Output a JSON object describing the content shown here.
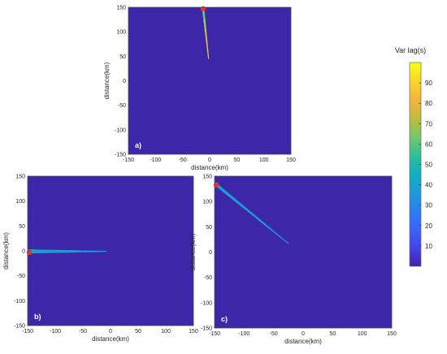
{
  "chart_data": [
    {
      "panel": "a)",
      "type": "heatmap",
      "xlabel": "distance(km)",
      "ylabel": "distance(km)",
      "xlim": [
        -150,
        150
      ],
      "ylim": [
        -150,
        150
      ],
      "xticks": [
        -150,
        -100,
        -50,
        0,
        50,
        100,
        150
      ],
      "yticks": [
        150,
        100,
        50,
        0,
        -50,
        -100,
        -150
      ],
      "source": {
        "x": -12,
        "y": 147
      },
      "streak": {
        "from": [
          -12,
          147
        ],
        "to": [
          -2,
          45
        ],
        "halfwidth": 2.5,
        "lag_start": 48,
        "lag_end": 95
      }
    },
    {
      "panel": "b)",
      "type": "heatmap",
      "xlabel": "distance(km)",
      "ylabel": "distance(km)",
      "xlim": [
        -150,
        150
      ],
      "ylim": [
        -150,
        150
      ],
      "xticks": [
        -150,
        -100,
        -50,
        0,
        50,
        100,
        150
      ],
      "yticks": [
        150,
        100,
        50,
        0,
        -50,
        -100,
        -150
      ],
      "source": {
        "x": -147,
        "y": -3
      },
      "streak": {
        "from": [
          -147,
          -1
        ],
        "to": [
          -8,
          -1
        ],
        "halfwidth": 4,
        "lag_start": 42,
        "lag_end": 26
      }
    },
    {
      "panel": "c)",
      "type": "heatmap",
      "xlabel": "distance(km)",
      "ylabel": "distance(km)",
      "xlim": [
        -150,
        150
      ],
      "ylim": [
        -150,
        150
      ],
      "xticks": [
        -150,
        -100,
        -50,
        0,
        50,
        100,
        150
      ],
      "yticks": [
        150,
        100,
        50,
        0,
        -50,
        -100,
        -150
      ],
      "source": {
        "x": -147,
        "y": 133
      },
      "streak": {
        "from": [
          -147,
          133
        ],
        "to": [
          -25,
          17
        ],
        "halfwidth": 3,
        "lag_start": 38,
        "lag_end": 30
      }
    }
  ],
  "colorbar": {
    "label": "Var lag(s)",
    "min": 0,
    "max": 100,
    "ticks": [
      10,
      20,
      30,
      40,
      50,
      60,
      70,
      80,
      90
    ]
  },
  "colors": {
    "background": "#3d26a8",
    "source_marker": "#e8322a",
    "colormap": [
      "#3e26a8",
      "#4443e9",
      "#3d62fd",
      "#2780f2",
      "#1d9bd8",
      "#0cb1c0",
      "#2ec09a",
      "#78c766",
      "#bebd3c",
      "#f2b43d",
      "#fbd827",
      "#f9fb15"
    ]
  }
}
